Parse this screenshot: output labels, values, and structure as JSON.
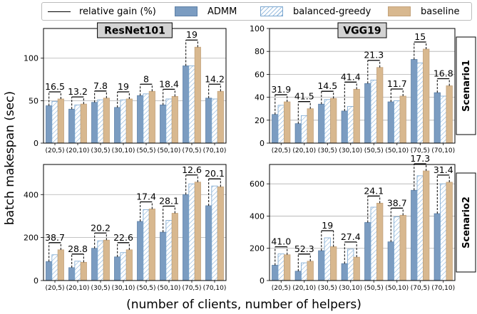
{
  "legend": {
    "line_label": "relative gain (%)",
    "admm_label": "ADMM",
    "bg_label": "balanced-greedy",
    "base_label": "baseline"
  },
  "colors": {
    "admm": "#7b9cc1",
    "balanced_greedy_hatch": "#8fb6dc",
    "baseline": "#d8b88f"
  },
  "ylabel": "batch makespan (sec)",
  "xlabel": "(number of clients, number of helpers)",
  "row_labels": [
    "Scenario1",
    "Scenario2"
  ],
  "chart_data": [
    {
      "type": "bar",
      "title": "ResNet101",
      "scenario": "Scenario1",
      "categories": [
        "(20,5)",
        "(20,10)",
        "(30,5)",
        "(30,10)",
        "(50,5)",
        "(50,10)",
        "(70,5)",
        "(70,10)"
      ],
      "ylim": [
        0,
        135
      ],
      "yticks": [
        0,
        50,
        100
      ],
      "grid": true,
      "series": [
        {
          "name": "ADMM",
          "values": [
            44,
            40,
            48,
            42,
            56,
            45,
            91,
            53
          ]
        },
        {
          "name": "balanced-greedy",
          "values": [
            49,
            45,
            51,
            51,
            58,
            52,
            91,
            52
          ]
        },
        {
          "name": "baseline",
          "values": [
            52,
            46,
            53,
            52,
            61,
            55,
            113,
            61
          ]
        }
      ],
      "gains": [
        "16.5",
        "13.2",
        "7.8",
        "19",
        "8",
        "18.4",
        "19",
        "14.2"
      ]
    },
    {
      "type": "bar",
      "title": "VGG19",
      "scenario": "Scenario1",
      "categories": [
        "(20,5)",
        "(20,10)",
        "(30,5)",
        "(30,10)",
        "(50,5)",
        "(50,10)",
        "(70,5)",
        "(70,10)"
      ],
      "ylim": [
        0,
        100
      ],
      "yticks": [
        0,
        20,
        40,
        60,
        80,
        100
      ],
      "grid": true,
      "series": [
        {
          "name": "ADMM",
          "values": [
            25,
            17,
            34,
            28,
            52,
            36,
            73,
            44
          ]
        },
        {
          "name": "balanced-greedy",
          "values": [
            33,
            24,
            38,
            32,
            55,
            37,
            70,
            41
          ]
        },
        {
          "name": "baseline",
          "values": [
            36,
            30,
            39,
            47,
            66,
            41,
            82,
            50
          ]
        }
      ],
      "gains": [
        "31.9",
        "41.5",
        "14.5",
        "41.4",
        "21.3",
        "11.7",
        "15",
        "16.8"
      ]
    },
    {
      "type": "bar",
      "title": "",
      "scenario": "Scenario2",
      "categories": [
        "(20,5)",
        "(20,10)",
        "(30,5)",
        "(30,10)",
        "(50,5)",
        "(50,10)",
        "(70,5)",
        "(70,10)"
      ],
      "ylim": [
        0,
        540
      ],
      "yticks": [
        0,
        200,
        400
      ],
      "grid": true,
      "series": [
        {
          "name": "ADMM",
          "values": [
            88,
            60,
            150,
            110,
            275,
            225,
            400,
            348
          ]
        },
        {
          "name": "balanced-greedy",
          "values": [
            120,
            90,
            185,
            130,
            330,
            280,
            450,
            440
          ]
        },
        {
          "name": "baseline",
          "values": [
            143,
            85,
            188,
            143,
            333,
            313,
            458,
            436
          ]
        }
      ],
      "gains": [
        "38.7",
        "28.8",
        "20.2",
        "22.6",
        "17.4",
        "28.1",
        "12.6",
        "20.1"
      ]
    },
    {
      "type": "bar",
      "title": "",
      "scenario": "Scenario2",
      "categories": [
        "(20,5)",
        "(20,10)",
        "(30,5)",
        "(30,10)",
        "(50,5)",
        "(50,10)",
        "(70,5)",
        "(70,10)"
      ],
      "ylim": [
        0,
        720
      ],
      "yticks": [
        0,
        200,
        400,
        600
      ],
      "grid": true,
      "series": [
        {
          "name": "ADMM",
          "values": [
            95,
            58,
            185,
            105,
            360,
            240,
            560,
            415
          ]
        },
        {
          "name": "balanced-greedy",
          "values": [
            165,
            110,
            265,
            195,
            455,
            395,
            650,
            600
          ]
        },
        {
          "name": "baseline",
          "values": [
            160,
            120,
            210,
            145,
            480,
            405,
            680,
            610
          ]
        }
      ],
      "gains": [
        "41.0",
        "52.3",
        "19",
        "27.4",
        "24.1",
        "38.7",
        "17.3",
        "31.4"
      ]
    }
  ]
}
